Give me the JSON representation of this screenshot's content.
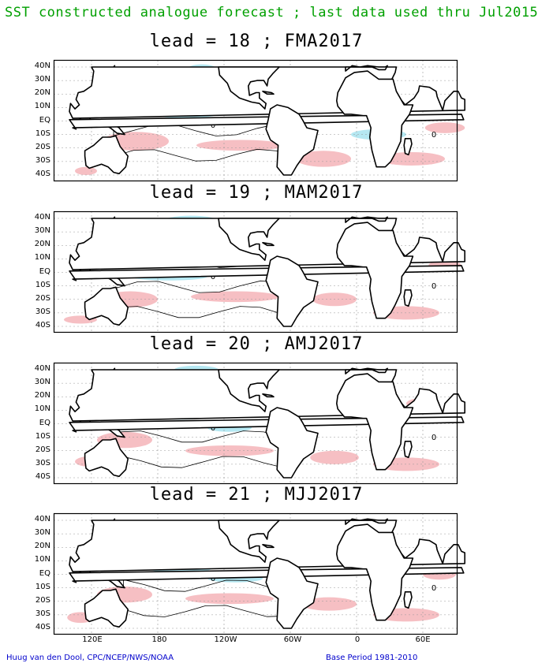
{
  "title": "SST constructed analogue forecast ; last data used thru Jul2015",
  "panels": [
    {
      "lead": "lead = 18 ; FMA2017"
    },
    {
      "lead": "lead = 19 ; MAM2017"
    },
    {
      "lead": "lead = 20 ; AMJ2017"
    },
    {
      "lead": "lead = 21 ; MJJ2017"
    }
  ],
  "lat_labels": [
    "40N",
    "30N",
    "20N",
    "10N",
    "EQ",
    "10S",
    "20S",
    "30S",
    "40S"
  ],
  "lon_labels": [
    "120E",
    "180",
    "120W",
    "60W",
    "0",
    "60E"
  ],
  "contour_label": "0",
  "footer": {
    "left": "Huug van den Dool, CPC/NCEP/NWS/NOAA",
    "right": "Base Period 1981-2010"
  },
  "colors": {
    "title": "#00a000",
    "footer": "#0000cc",
    "positive_anomaly": "#f4b4b8",
    "negative_anomaly": "#a8e4f0"
  }
}
